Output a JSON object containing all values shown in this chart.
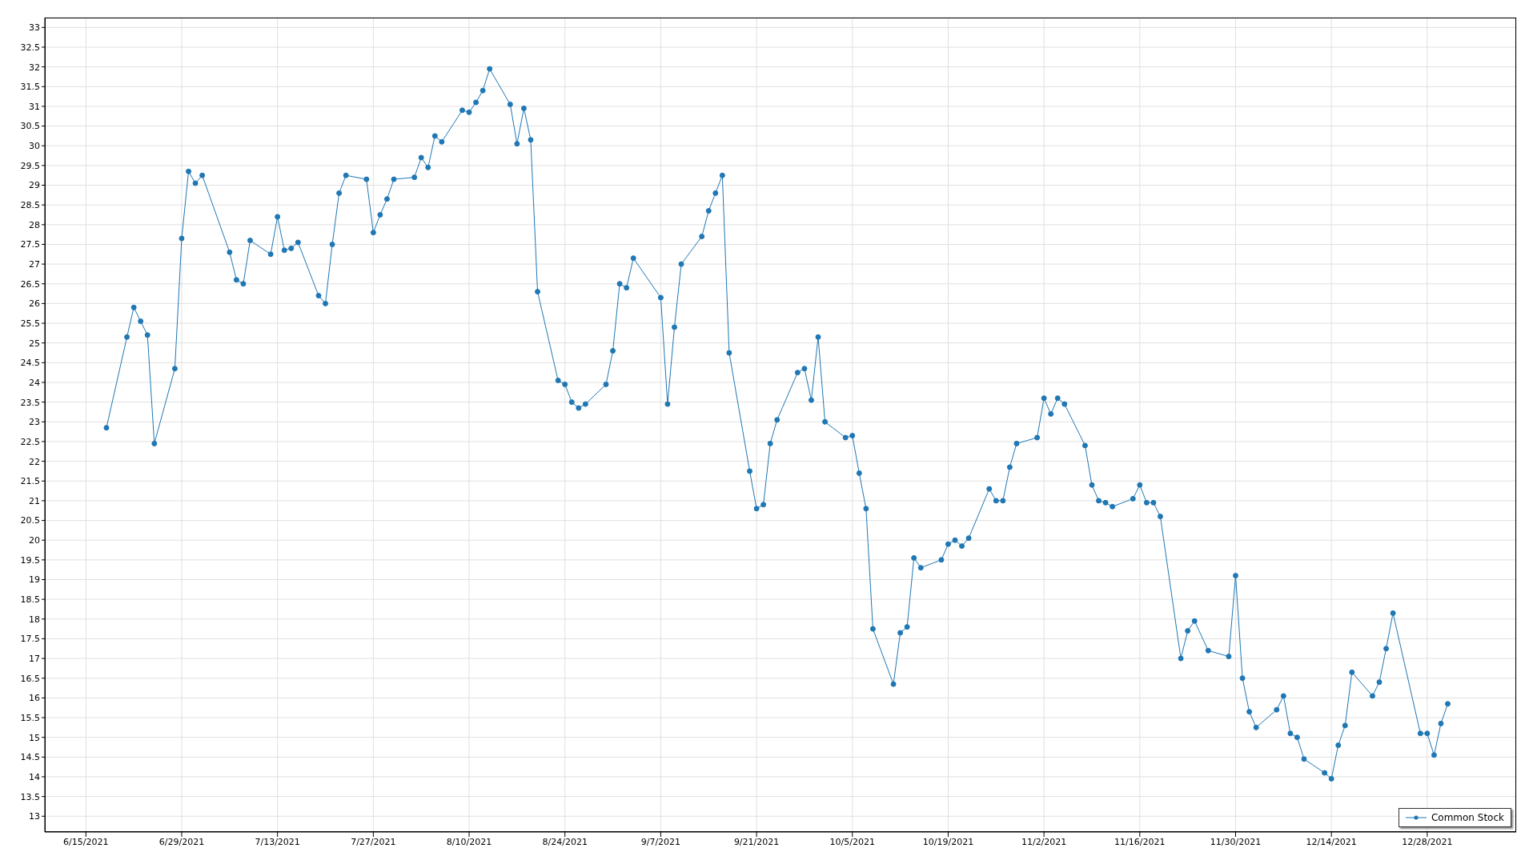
{
  "chart_data": {
    "type": "line",
    "xlim": [
      "2021-06-09",
      "2022-01-10"
    ],
    "ylim": [
      12.6,
      33.25
    ],
    "xticks": [
      {
        "value": "2021-06-15",
        "label": "6/15/2021"
      },
      {
        "value": "2021-06-29",
        "label": "6/29/2021"
      },
      {
        "value": "2021-07-13",
        "label": "7/13/2021"
      },
      {
        "value": "2021-07-27",
        "label": "7/27/2021"
      },
      {
        "value": "2021-08-10",
        "label": "8/10/2021"
      },
      {
        "value": "2021-08-24",
        "label": "8/24/2021"
      },
      {
        "value": "2021-09-07",
        "label": "9/7/2021"
      },
      {
        "value": "2021-09-21",
        "label": "9/21/2021"
      },
      {
        "value": "2021-10-05",
        "label": "10/5/2021"
      },
      {
        "value": "2021-10-19",
        "label": "10/19/2021"
      },
      {
        "value": "2021-11-02",
        "label": "11/2/2021"
      },
      {
        "value": "2021-11-16",
        "label": "11/16/2021"
      },
      {
        "value": "2021-11-30",
        "label": "11/30/2021"
      },
      {
        "value": "2021-12-14",
        "label": "12/14/2021"
      },
      {
        "value": "2021-12-28",
        "label": "12/28/2021"
      }
    ],
    "yticks": [
      13,
      13.5,
      14,
      14.5,
      15,
      15.5,
      16,
      16.5,
      17,
      17.5,
      18,
      18.5,
      19,
      19.5,
      20,
      20.5,
      21,
      21.5,
      22,
      22.5,
      23,
      23.5,
      24,
      24.5,
      25,
      25.5,
      26,
      26.5,
      27,
      27.5,
      28,
      28.5,
      29,
      29.5,
      30,
      30.5,
      31,
      31.5,
      32,
      32.5,
      33
    ],
    "grid": true,
    "legend": "bottom right",
    "marker": "circle",
    "line_style": "solid",
    "x": [
      "2021-06-18",
      "2021-06-21",
      "2021-06-22",
      "2021-06-23",
      "2021-06-24",
      "2021-06-25",
      "2021-06-28",
      "2021-06-29",
      "2021-06-30",
      "2021-07-01",
      "2021-07-02",
      "2021-07-06",
      "2021-07-07",
      "2021-07-08",
      "2021-07-09",
      "2021-07-12",
      "2021-07-13",
      "2021-07-14",
      "2021-07-15",
      "2021-07-16",
      "2021-07-19",
      "2021-07-20",
      "2021-07-21",
      "2021-07-22",
      "2021-07-23",
      "2021-07-26",
      "2021-07-27",
      "2021-07-28",
      "2021-07-29",
      "2021-07-30",
      "2021-08-02",
      "2021-08-03",
      "2021-08-04",
      "2021-08-05",
      "2021-08-06",
      "2021-08-09",
      "2021-08-10",
      "2021-08-11",
      "2021-08-12",
      "2021-08-13",
      "2021-08-16",
      "2021-08-17",
      "2021-08-18",
      "2021-08-19",
      "2021-08-20",
      "2021-08-23",
      "2021-08-24",
      "2021-08-25",
      "2021-08-26",
      "2021-08-27",
      "2021-08-30",
      "2021-08-31",
      "2021-09-01",
      "2021-09-02",
      "2021-09-03",
      "2021-09-07",
      "2021-09-08",
      "2021-09-09",
      "2021-09-10",
      "2021-09-13",
      "2021-09-14",
      "2021-09-15",
      "2021-09-16",
      "2021-09-17",
      "2021-09-20",
      "2021-09-21",
      "2021-09-22",
      "2021-09-23",
      "2021-09-24",
      "2021-09-27",
      "2021-09-28",
      "2021-09-29",
      "2021-09-30",
      "2021-10-01",
      "2021-10-04",
      "2021-10-05",
      "2021-10-06",
      "2021-10-07",
      "2021-10-08",
      "2021-10-11",
      "2021-10-12",
      "2021-10-13",
      "2021-10-14",
      "2021-10-15",
      "2021-10-18",
      "2021-10-19",
      "2021-10-20",
      "2021-10-21",
      "2021-10-22",
      "2021-10-25",
      "2021-10-26",
      "2021-10-27",
      "2021-10-28",
      "2021-10-29",
      "2021-11-01",
      "2021-11-02",
      "2021-11-03",
      "2021-11-04",
      "2021-11-05",
      "2021-11-08",
      "2021-11-09",
      "2021-11-10",
      "2021-11-11",
      "2021-11-12",
      "2021-11-15",
      "2021-11-16",
      "2021-11-17",
      "2021-11-18",
      "2021-11-19",
      "2021-11-22",
      "2021-11-23",
      "2021-11-24",
      "2021-11-26",
      "2021-11-29",
      "2021-11-30",
      "2021-12-01",
      "2021-12-02",
      "2021-12-03",
      "2021-12-06",
      "2021-12-07",
      "2021-12-08",
      "2021-12-09",
      "2021-12-10",
      "2021-12-13",
      "2021-12-14",
      "2021-12-15",
      "2021-12-16",
      "2021-12-17",
      "2021-12-20",
      "2021-12-21",
      "2021-12-22",
      "2021-12-23",
      "2021-12-27",
      "2021-12-28",
      "2021-12-29",
      "2021-12-30",
      "2021-12-31"
    ],
    "series": [
      {
        "name": "Common Stock",
        "color": "#1f77b4",
        "values": [
          22.85,
          25.15,
          25.9,
          25.55,
          25.2,
          22.45,
          24.35,
          27.65,
          29.35,
          29.05,
          29.25,
          27.3,
          26.6,
          26.5,
          27.6,
          27.25,
          28.2,
          27.35,
          27.4,
          27.55,
          26.2,
          26.0,
          27.5,
          28.8,
          29.25,
          29.15,
          27.8,
          28.25,
          28.65,
          29.15,
          29.2,
          29.7,
          29.45,
          30.25,
          30.1,
          30.9,
          30.85,
          31.1,
          31.4,
          31.95,
          31.05,
          30.05,
          30.95,
          30.15,
          26.3,
          24.05,
          23.95,
          23.5,
          23.35,
          23.45,
          23.95,
          24.8,
          26.5,
          26.4,
          27.15,
          26.15,
          23.45,
          25.4,
          27.0,
          27.7,
          28.35,
          28.8,
          29.25,
          24.75,
          21.75,
          20.8,
          20.9,
          22.45,
          23.05,
          24.25,
          24.35,
          23.55,
          25.15,
          23.0,
          22.6,
          22.65,
          21.7,
          20.8,
          17.75,
          16.35,
          17.65,
          17.8,
          19.55,
          19.3,
          19.5,
          19.9,
          20.0,
          19.85,
          20.05,
          21.3,
          21.0,
          21.0,
          21.85,
          22.45,
          22.6,
          23.6,
          23.2,
          23.6,
          23.45,
          22.4,
          21.4,
          21.0,
          20.95,
          20.85,
          21.05,
          21.4,
          20.95,
          20.95,
          20.6,
          17.0,
          17.7,
          17.95,
          17.2,
          17.05,
          19.1,
          16.5,
          15.65,
          15.25,
          15.7,
          16.05,
          15.1,
          15.0,
          14.45,
          14.1,
          13.95,
          14.8,
          15.3,
          16.65,
          16.05,
          16.4,
          17.25,
          18.15,
          15.1,
          15.1,
          14.55,
          15.35,
          15.85
        ]
      }
    ]
  }
}
